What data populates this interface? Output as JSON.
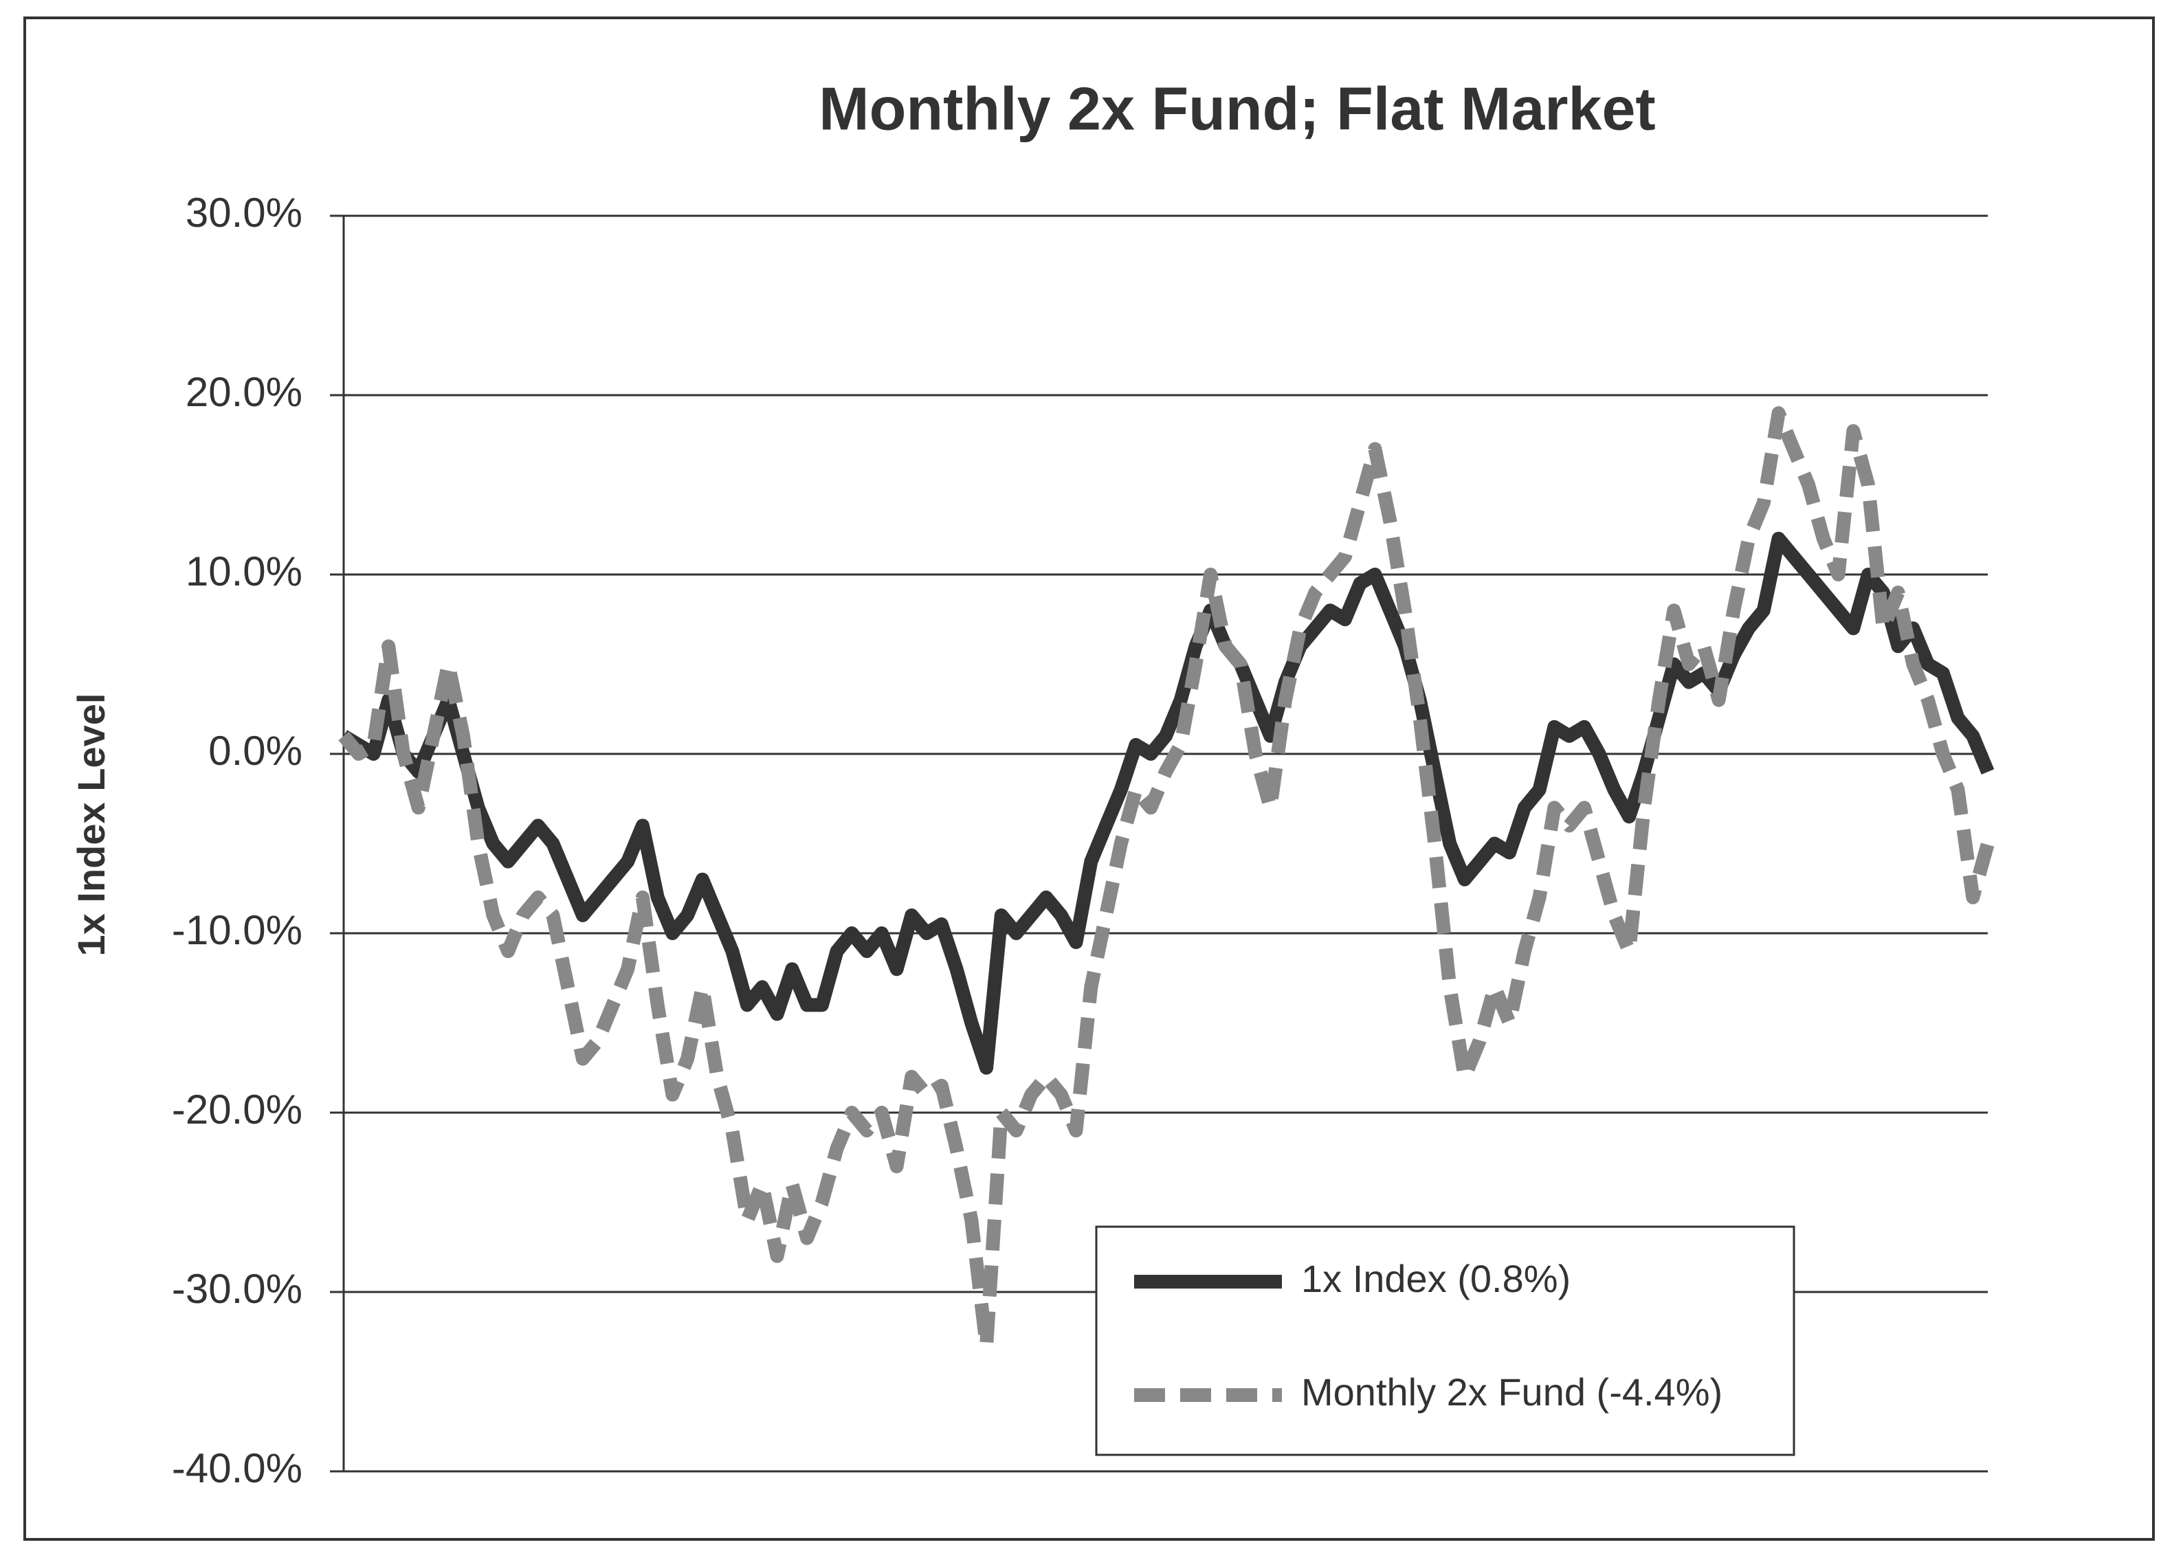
{
  "chart_data": {
    "type": "line",
    "title": "Monthly 2x Fund; Flat Market",
    "y_label": "1x Index Level",
    "ylim": [
      -40,
      30
    ],
    "yticks": [
      {
        "value": 30,
        "label": "30.0%"
      },
      {
        "value": 20,
        "label": "20.0%"
      },
      {
        "value": 10,
        "label": "10.0%"
      },
      {
        "value": 0,
        "label": "0.0%"
      },
      {
        "value": -10,
        "label": "-10.0%"
      },
      {
        "value": -20,
        "label": "-20.0%"
      },
      {
        "value": -30,
        "label": "-30.0%"
      },
      {
        "value": -40,
        "label": "-40.0%"
      }
    ],
    "grid": true,
    "legend": "lower right",
    "series": [
      {
        "name": "1x Index (0.8%)",
        "color": "#333333",
        "dashed": false,
        "values": [
          1,
          0.5,
          0,
          3,
          0,
          -1,
          1,
          3,
          0,
          -3,
          -5,
          -6,
          -5,
          -4,
          -5,
          -7,
          -9,
          -8,
          -7,
          -6,
          -4,
          -8,
          -10,
          -9,
          -7,
          -9,
          -11,
          -14,
          -13,
          -14.5,
          -12,
          -14,
          -14,
          -11,
          -10,
          -11,
          -10,
          -12,
          -9,
          -10,
          -9.5,
          -12,
          -15,
          -17.5,
          -9,
          -10,
          -9,
          -8,
          -9,
          -10.5,
          -6,
          -4,
          -2,
          0.5,
          0,
          1,
          3,
          6,
          8,
          6,
          5,
          3,
          1,
          4,
          6,
          7,
          8,
          7.5,
          9.5,
          10,
          8,
          6,
          3,
          -1,
          -5,
          -7,
          -6,
          -5,
          -5.5,
          -3,
          -2,
          1.5,
          1,
          1.5,
          0,
          -2,
          -3.5,
          -1,
          2,
          5,
          4,
          4.5,
          3.5,
          5.5,
          7,
          8,
          12,
          11,
          10,
          9,
          8,
          7,
          10,
          9,
          6,
          7,
          5,
          4.5,
          2,
          1,
          -1
        ]
      },
      {
        "name": "Monthly 2x Fund (-4.4%)",
        "color": "#888888",
        "dashed": true,
        "values": [
          1,
          0,
          0.5,
          6,
          0,
          -3,
          1,
          5,
          1,
          -5,
          -9,
          -11,
          -9,
          -8,
          -9,
          -13,
          -17,
          -16,
          -14,
          -12,
          -8,
          -14,
          -19,
          -17,
          -13,
          -18,
          -21,
          -26,
          -24,
          -28,
          -24,
          -27,
          -25,
          -22,
          -20,
          -21,
          -20,
          -23,
          -18,
          -19,
          -18.5,
          -22,
          -26,
          -33,
          -20,
          -21,
          -19,
          -18,
          -19,
          -21,
          -13,
          -9,
          -5,
          -2,
          -3,
          -1,
          0.5,
          5,
          10,
          6,
          5,
          0,
          -3,
          3,
          7,
          9,
          10,
          11,
          14,
          17,
          13,
          8,
          2,
          -5,
          -13,
          -18,
          -16,
          -13,
          -15,
          -11,
          -8,
          -3,
          -4,
          -3,
          -6,
          -9,
          -11,
          -3,
          3,
          8,
          5,
          6,
          3,
          8,
          12,
          14,
          19,
          17,
          15,
          12,
          10,
          18,
          15,
          7,
          9,
          5,
          3,
          0,
          -2,
          -8,
          -5
        ]
      }
    ]
  }
}
